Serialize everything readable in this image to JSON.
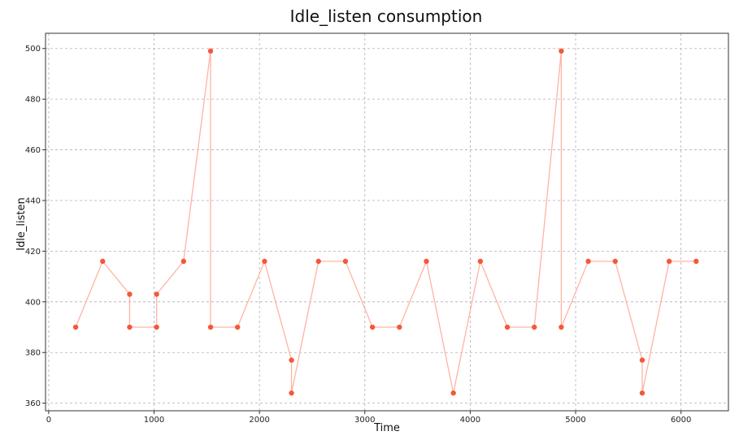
{
  "chart_data": {
    "type": "line",
    "title": "Idle_listen consumption",
    "xlabel": "Time",
    "ylabel": "Idle_listen",
    "xlim": [
      -30,
      6450
    ],
    "ylim": [
      357,
      506
    ],
    "xticks": [
      0,
      1000,
      2000,
      3000,
      4000,
      5000,
      6000
    ],
    "yticks": [
      360,
      380,
      400,
      420,
      440,
      460,
      480,
      500
    ],
    "grid": true,
    "legend": "none",
    "series": [
      {
        "line_color": "#ffb3a3",
        "marker_color": "#f4583a",
        "x": [
          256,
          512,
          768,
          768,
          1024,
          1024,
          1280,
          1536,
          1536,
          1792,
          2048,
          2304,
          2304,
          2560,
          2816,
          3072,
          3328,
          3584,
          3840,
          4096,
          4352,
          4608,
          4864,
          4864,
          5120,
          5376,
          5632,
          5632,
          5888,
          6144
        ],
        "y": [
          390,
          416,
          403,
          390,
          390,
          403,
          416,
          499,
          390,
          390,
          416,
          377,
          364,
          416,
          416,
          390,
          390,
          416,
          364,
          416,
          390,
          390,
          499,
          390,
          416,
          416,
          377,
          364,
          416,
          416
        ]
      }
    ]
  }
}
